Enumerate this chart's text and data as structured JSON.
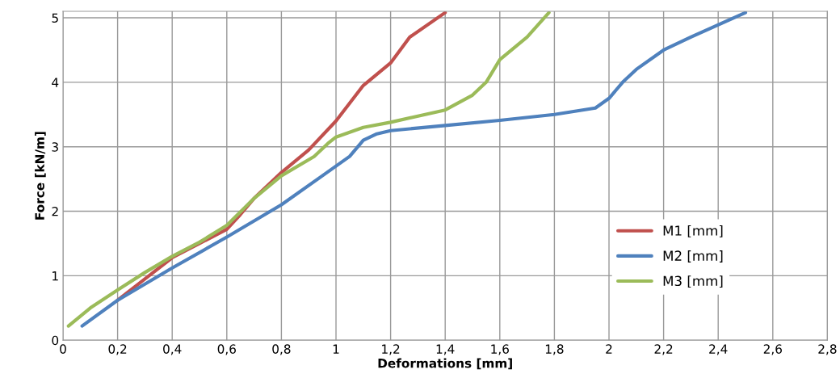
{
  "chart_data": {
    "type": "line",
    "xlabel": "Deformations [mm]",
    "ylabel": "Force [kN/m]",
    "xlim": [
      0,
      2.8
    ],
    "ylim": [
      0,
      5.1
    ],
    "xticks": [
      0,
      {
        "value": 0.2,
        "label": "0,2"
      },
      {
        "value": 0.4,
        "label": "0,4"
      },
      {
        "value": 0.6,
        "label": "0,6"
      },
      {
        "value": 0.8,
        "label": "0,8"
      },
      1,
      {
        "value": 1.2,
        "label": "1,2"
      },
      {
        "value": 1.4,
        "label": "1,4"
      },
      {
        "value": 1.6,
        "label": "1,6"
      },
      {
        "value": 1.8,
        "label": "1,8"
      },
      2,
      {
        "value": 2.2,
        "label": "2,2"
      },
      {
        "value": 2.4,
        "label": "2,4"
      },
      {
        "value": 2.6,
        "label": "2,6"
      },
      {
        "value": 2.8,
        "label": "2,8"
      }
    ],
    "yticks": [
      0,
      1,
      2,
      3,
      4,
      5
    ],
    "grid": true,
    "legend": "lower right",
    "marker": "none",
    "line_style": "solid",
    "series": [
      {
        "name": "M1 [mm]",
        "color": "#c0504d",
        "x": [
          0.2,
          0.3,
          0.4,
          0.5,
          0.6,
          0.65,
          0.7,
          0.8,
          0.9,
          1.0,
          1.1,
          1.2,
          1.27,
          1.4
        ],
        "values": [
          0.62,
          0.95,
          1.28,
          1.5,
          1.72,
          1.95,
          2.2,
          2.6,
          2.95,
          3.4,
          3.95,
          4.3,
          4.7,
          5.08
        ]
      },
      {
        "name": "M2 [mm]",
        "color": "#4f81bd",
        "x": [
          0.07,
          0.2,
          0.4,
          0.6,
          0.8,
          0.95,
          1.05,
          1.1,
          1.15,
          1.2,
          1.4,
          1.6,
          1.8,
          1.95,
          2.0,
          2.05,
          2.1,
          2.2,
          2.3,
          2.5
        ],
        "values": [
          0.22,
          0.62,
          1.12,
          1.6,
          2.1,
          2.55,
          2.85,
          3.1,
          3.2,
          3.25,
          3.33,
          3.41,
          3.5,
          3.6,
          3.75,
          4.0,
          4.2,
          4.5,
          4.7,
          5.08
        ]
      },
      {
        "name": "M3 [mm]",
        "color": "#9bbb59",
        "x": [
          0.02,
          0.1,
          0.2,
          0.3,
          0.4,
          0.5,
          0.6,
          0.7,
          0.8,
          0.92,
          0.97,
          1.0,
          1.1,
          1.2,
          1.4,
          1.5,
          1.55,
          1.6,
          1.7,
          1.78
        ],
        "values": [
          0.22,
          0.5,
          0.78,
          1.05,
          1.3,
          1.52,
          1.78,
          2.2,
          2.55,
          2.85,
          3.05,
          3.15,
          3.3,
          3.38,
          3.57,
          3.8,
          4.0,
          4.35,
          4.7,
          5.08
        ]
      }
    ]
  }
}
